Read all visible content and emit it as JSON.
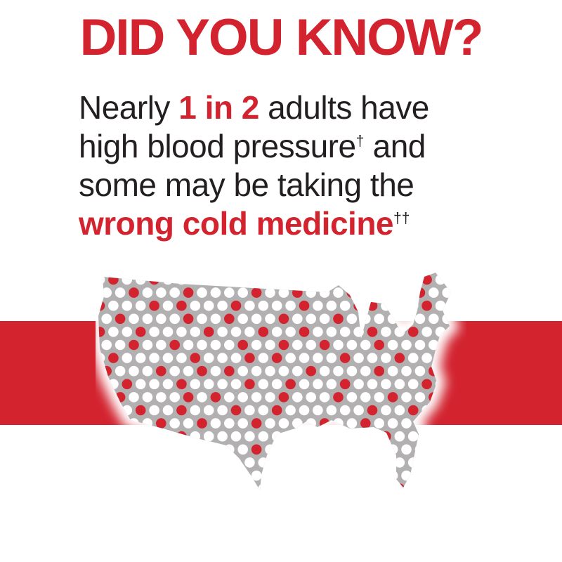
{
  "title": {
    "text": "DID YOU KNOW?"
  },
  "headline": {
    "segments": [
      {
        "t": "Nearly "
      },
      {
        "t": "1 in 2",
        "s": "accent"
      },
      {
        "t": " adults have"
      },
      {
        "br": true
      },
      {
        "t": "high blood pressure"
      },
      {
        "t": "†",
        "s": "sup"
      },
      {
        "t": " and"
      },
      {
        "br": true
      },
      {
        "t": "some may be taking the"
      },
      {
        "br": true
      },
      {
        "t": "wrong cold medicine",
        "s": "accent"
      },
      {
        "t": "††",
        "s": "sup"
      }
    ]
  },
  "colors": {
    "accent_red": "#d2232f",
    "band_red": "#d2232f",
    "map_gray": "#b2b0b0",
    "dot_white": "#ffffff",
    "text_black": "#231f20",
    "background": "#ffffff"
  },
  "map": {
    "name": "usa-dot-map",
    "dot_pitch_x": 19.4,
    "dot_pitch_y": 18.6,
    "dot_radius": 7.3,
    "stagger_offset": 9.7,
    "pattern_rows": [
      "WRWWRWWWRRWWRWWWRWWWRWWWRWW",
      "WWRWWWRWWWWRWWRWWWRWWWWRWWR",
      "RWWWRWRWWWRWWWWRWWWRRWWWRWW",
      "WRWWWWRWWRWWWRWWWRWWWWRWWWR",
      "RWWRWWWWRWWWRWWRWWWWRWWRWWR",
      "WWRWWRWWWWRWWRWWRWWWRWWWWRW",
      "WRWWWWWRWWWRWRWWWWRWWWRWWWR",
      "RWWWRWWRWRWWWWWRWWWWRWWWRWR",
      "WWRWWWRWWWWRWWRWWWRWWWWWRWR",
      "WRWWWWRWRWWWWRWWWRWWWRWWRWW",
      "RWWRWWRWWWRWWRWWWWWWRWWRWWR",
      "WWWWRWWRWWWRWWWWRWWRWWWRWWR",
      "WRWWWWRWWWWWWWRWWWWWWRWWWWW",
      "WWWRWWWWRWWRWWWWWRWWWWWWRWW",
      "WWWWWRWWWWWWWRWWWWWWRWWWWWW",
      "WWWWWWWRWWWWWWWWRWWWWWWWWWW",
      "WWWWRWWWWWWWWWWWWWWWWWRWWWW"
    ]
  }
}
